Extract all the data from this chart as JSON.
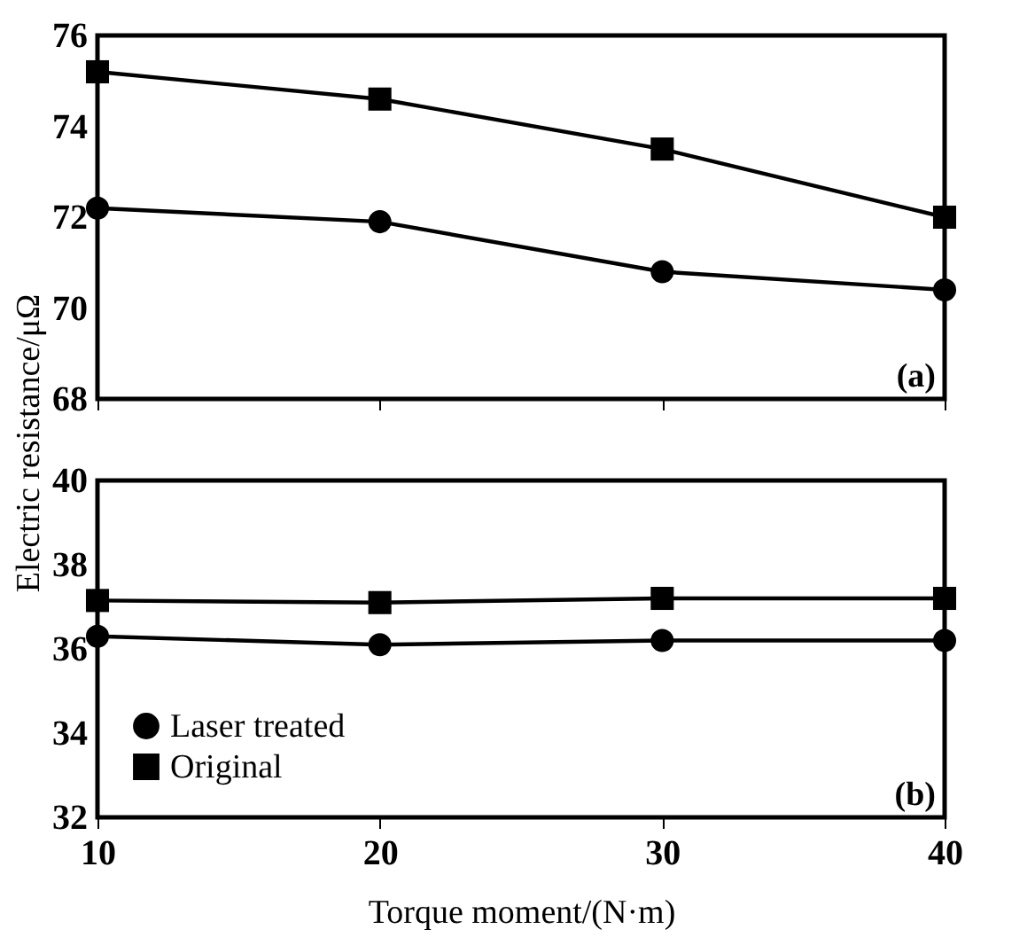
{
  "chart_data": [
    {
      "type": "line",
      "ylabel": "Electric resistance/μΩ",
      "x": [
        10,
        20,
        30,
        40
      ],
      "xlim": [
        10,
        40
      ],
      "xticks": [
        10,
        20,
        30,
        40
      ],
      "ylim": [
        68,
        76
      ],
      "yticks": [
        68,
        70,
        72,
        74,
        76
      ],
      "tick_labels": "y",
      "grid": false,
      "line_style": "solid",
      "annotations": [
        "(a)"
      ],
      "series": [
        {
          "color": "#000000",
          "marker": "circle",
          "values": [
            72.2,
            71.9,
            70.8,
            70.4
          ]
        },
        {
          "color": "#000000",
          "marker": "square",
          "values": [
            75.2,
            74.6,
            73.5,
            72.0
          ]
        }
      ]
    },
    {
      "type": "line",
      "xlabel": "Torque moment/(N·m)",
      "x": [
        10,
        20,
        30,
        40
      ],
      "xlim": [
        10,
        40
      ],
      "xticks": [
        10,
        20,
        30,
        40
      ],
      "ylim": [
        32,
        40
      ],
      "yticks": [
        32,
        34,
        36,
        38,
        40
      ],
      "grid": false,
      "legend": "bottom left",
      "line_style": "solid",
      "annotations": [
        "(b)"
      ],
      "series": [
        {
          "name": "Laser treated",
          "color": "#000000",
          "marker": "circle",
          "values": [
            36.3,
            36.1,
            36.2,
            36.2
          ]
        },
        {
          "name": "Original",
          "color": "#000000",
          "marker": "square",
          "values": [
            37.15,
            37.1,
            37.2,
            37.2
          ]
        }
      ]
    }
  ]
}
